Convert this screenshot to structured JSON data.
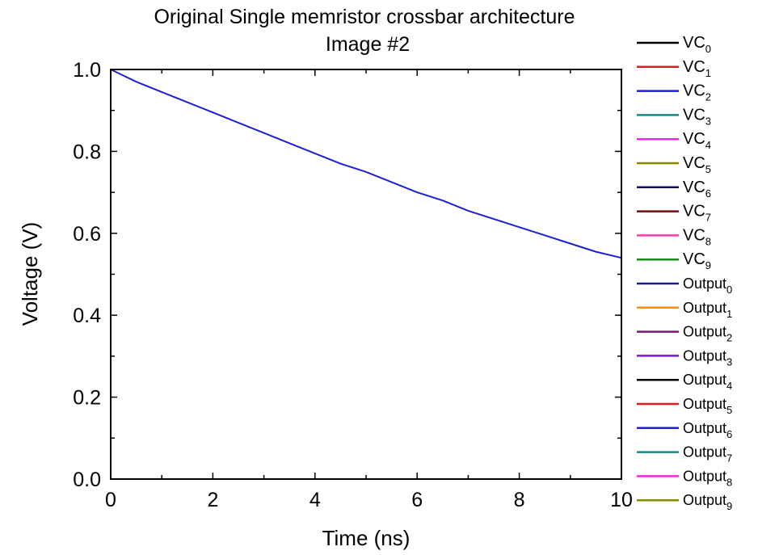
{
  "chart_data": {
    "type": "line",
    "title_line1": "Original Single memristor crossbar architecture",
    "title_line2": "Image #2",
    "xlabel": "Time (ns)",
    "ylabel": "Voltage (V)",
    "xlim": [
      0,
      10
    ],
    "ylim": [
      0.0,
      1.0
    ],
    "x_ticks": [
      0,
      2,
      4,
      6,
      8,
      10
    ],
    "x_tick_labels": [
      "0",
      "2",
      "4",
      "6",
      "8",
      "10"
    ],
    "y_ticks": [
      0.0,
      0.2,
      0.4,
      0.6,
      0.8,
      1.0
    ],
    "y_tick_labels": [
      "0.0",
      "0.2",
      "0.4",
      "0.6",
      "0.8",
      "1.0"
    ],
    "grid": false,
    "legend_position": "right",
    "series": [
      {
        "name": "VC",
        "sub": "0",
        "color": "#000000",
        "x": [
          0,
          10
        ],
        "y": [
          1.0,
          1.0
        ]
      },
      {
        "name": "VC",
        "sub": "1",
        "color": "#e41a1c",
        "x": [
          0,
          10
        ],
        "y": [
          1.0,
          1.0
        ]
      },
      {
        "name": "VC",
        "sub": "2",
        "color": "#1f1fd6",
        "x": [
          0,
          0.5,
          1,
          1.5,
          2,
          2.5,
          3,
          3.5,
          4,
          4.5,
          5,
          5.5,
          6,
          6.5,
          7,
          7.5,
          8,
          8.5,
          9,
          9.5,
          10
        ],
        "y": [
          1.0,
          0.97,
          0.945,
          0.92,
          0.895,
          0.87,
          0.845,
          0.82,
          0.795,
          0.77,
          0.75,
          0.725,
          0.7,
          0.68,
          0.655,
          0.635,
          0.615,
          0.595,
          0.575,
          0.555,
          0.54
        ]
      },
      {
        "name": "VC",
        "sub": "3",
        "color": "#0f8a8a",
        "x": [
          0,
          10
        ],
        "y": [
          1.0,
          1.0
        ]
      },
      {
        "name": "VC",
        "sub": "4",
        "color": "#ff1fe0",
        "x": [
          0,
          10
        ],
        "y": [
          1.0,
          1.0
        ]
      },
      {
        "name": "VC",
        "sub": "5",
        "color": "#8a8a00",
        "x": [
          0,
          10
        ],
        "y": [
          1.0,
          1.0
        ]
      },
      {
        "name": "VC",
        "sub": "6",
        "color": "#101060",
        "x": [
          0,
          10
        ],
        "y": [
          1.0,
          1.0
        ]
      },
      {
        "name": "VC",
        "sub": "7",
        "color": "#6b0d0d",
        "x": [
          0,
          10
        ],
        "y": [
          1.0,
          1.0
        ]
      },
      {
        "name": "VC",
        "sub": "8",
        "color": "#ff3fa8",
        "x": [
          0,
          10
        ],
        "y": [
          1.0,
          1.0
        ]
      },
      {
        "name": "VC",
        "sub": "9",
        "color": "#1a8a1a",
        "x": [
          0,
          10
        ],
        "y": [
          1.0,
          1.0
        ]
      },
      {
        "name": "Output",
        "sub": "0",
        "color": "#1a1a8a",
        "x": [
          0,
          10
        ],
        "y": [
          0.0,
          0.0
        ]
      },
      {
        "name": "Output",
        "sub": "1",
        "color": "#ff8c1a",
        "x": [
          0,
          10
        ],
        "y": [
          0.0,
          0.0
        ]
      },
      {
        "name": "Output",
        "sub": "2",
        "color": "#7a1a7a",
        "x": [
          0,
          10
        ],
        "y": [
          0.0,
          0.0
        ]
      },
      {
        "name": "Output",
        "sub": "3",
        "color": "#7a1ad6",
        "x": [
          0,
          10
        ],
        "y": [
          0.0,
          0.0
        ]
      },
      {
        "name": "Output",
        "sub": "4",
        "color": "#000000",
        "x": [
          0,
          10
        ],
        "y": [
          0.0,
          0.0
        ]
      },
      {
        "name": "Output",
        "sub": "5",
        "color": "#e41a1c",
        "x": [
          0,
          10
        ],
        "y": [
          0.0,
          0.0
        ]
      },
      {
        "name": "Output",
        "sub": "6",
        "color": "#1f1fd6",
        "x": [
          0,
          10
        ],
        "y": [
          0.0,
          0.0
        ]
      },
      {
        "name": "Output",
        "sub": "7",
        "color": "#0f8a8a",
        "x": [
          0,
          10
        ],
        "y": [
          0.0,
          0.0
        ]
      },
      {
        "name": "Output",
        "sub": "8",
        "color": "#ff1fe0",
        "x": [
          0,
          10
        ],
        "y": [
          0.0,
          0.0
        ]
      },
      {
        "name": "Output",
        "sub": "9",
        "color": "#8a8a00",
        "x": [
          0,
          10
        ],
        "y": [
          0.0,
          0.0
        ]
      }
    ]
  }
}
